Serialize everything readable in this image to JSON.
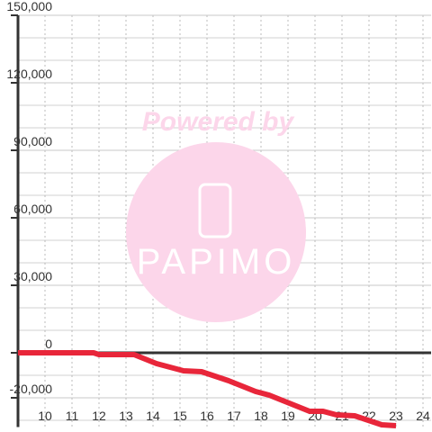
{
  "chart_data": {
    "type": "line",
    "annotations": [
      "Powered by",
      "PAPIMO"
    ],
    "x": [
      9,
      11.8,
      12,
      13.3,
      13.63,
      14.13,
      14.63,
      15.13,
      15.8,
      16.3,
      16.8,
      17.3,
      17.8,
      18.3,
      18.8,
      19.3,
      19.8,
      20.3,
      20.8,
      21.47,
      21.97,
      22.47,
      23
    ],
    "series": [
      {
        "color": "#e8263a",
        "values": [
          0,
          0,
          -800,
          -800,
          -2400,
          -4800,
          -6400,
          -8000,
          -8400,
          -10400,
          -12400,
          -14800,
          -17200,
          -18800,
          -21200,
          -23600,
          -26000,
          -26000,
          -27600,
          -28000,
          -30000,
          -32000,
          -32400
        ]
      }
    ],
    "xlim": [
      9,
      24.3
    ],
    "xticks": [
      10,
      11,
      12,
      13,
      14,
      15,
      16,
      17,
      18,
      19,
      20,
      21,
      22,
      23,
      24
    ],
    "ylim": [
      -33000,
      150000
    ],
    "yticks": [
      {
        "value": 150000,
        "label": "150,000"
      },
      {
        "value": 120000,
        "label": "120,000"
      },
      {
        "value": 90000,
        "label": "90,000"
      },
      {
        "value": 60000,
        "label": "60,000"
      },
      {
        "value": 30000,
        "label": "30,000"
      },
      0,
      {
        "value": -20000,
        "label": "-20,000"
      }
    ],
    "yminor": [
      -30000,
      -20000,
      -10000,
      10000,
      20000,
      40000,
      50000,
      70000,
      80000,
      100000,
      110000,
      130000,
      140000
    ],
    "grid": true
  }
}
